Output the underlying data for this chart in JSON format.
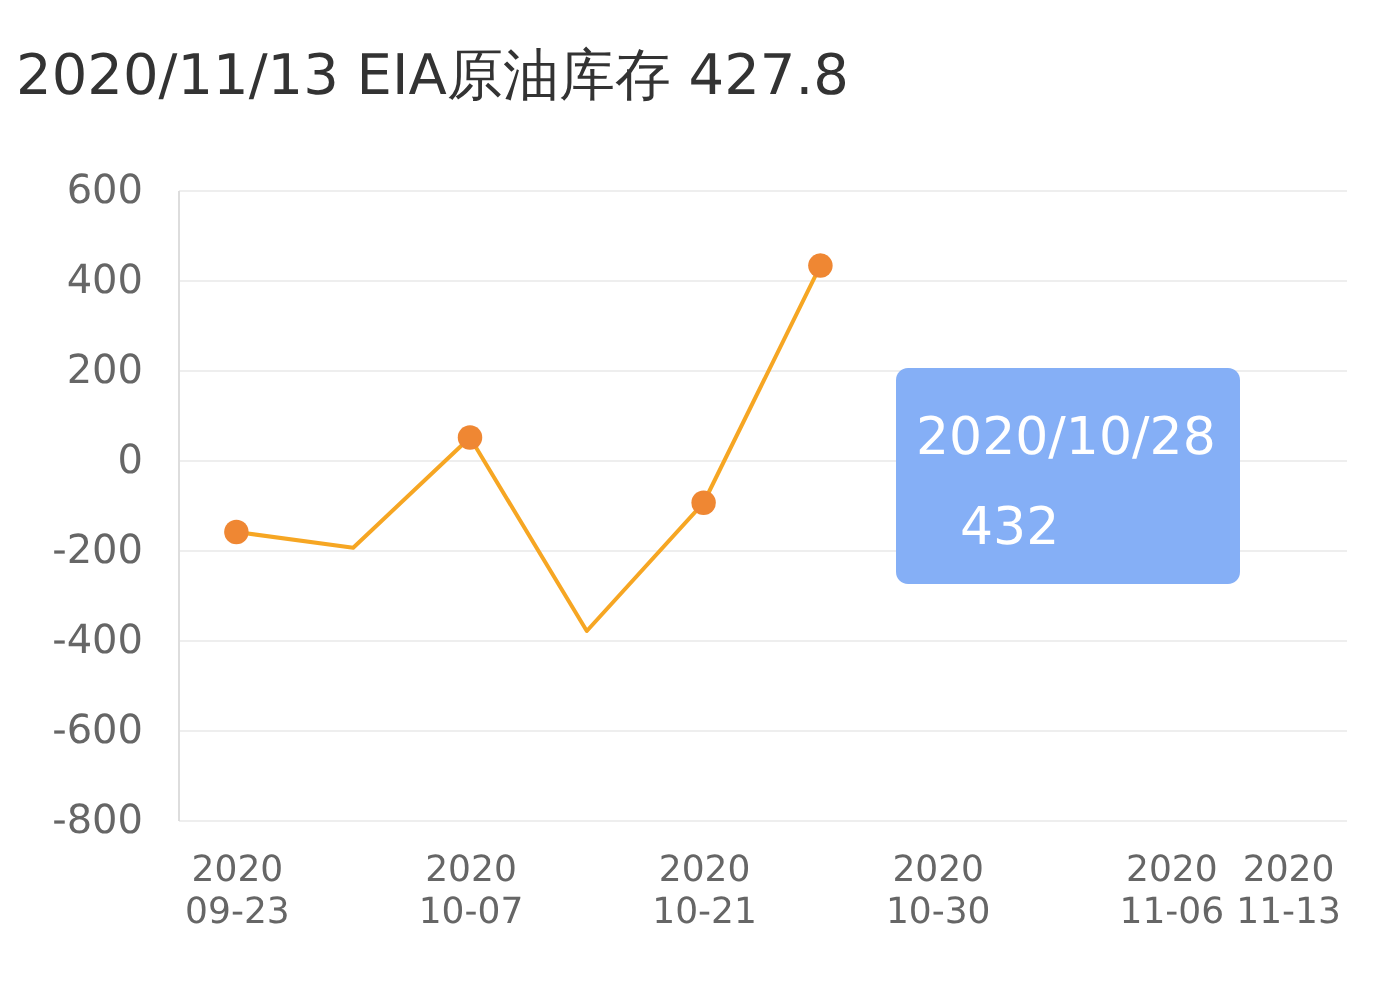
{
  "chart_data": {
    "type": "line",
    "title": "2020/11/13   EIA原油库存 427.8",
    "categories": [
      "2020\n09-23",
      null,
      "2020\n10-07",
      null,
      "2020\n10-21",
      null,
      "2020\n10-30",
      null,
      "2020\n11-06",
      "2020\n11-13"
    ],
    "series": [
      {
        "color": "#f6a623",
        "values": [
          -160,
          -195,
          50,
          -380,
          -95,
          432,
          null,
          null,
          null,
          null
        ]
      },
      {
        "type": "scatter",
        "color": "#ef8733",
        "marker": "circle",
        "values": [
          -160,
          null,
          50,
          null,
          -95,
          432,
          null,
          null,
          null,
          null
        ]
      }
    ],
    "ylim": [
      -800,
      600
    ],
    "yticks": [
      -800,
      -600,
      -400,
      -200,
      0,
      200,
      400,
      600
    ],
    "grid": "y",
    "annotations": [
      "2020/10/28",
      "432"
    ]
  }
}
